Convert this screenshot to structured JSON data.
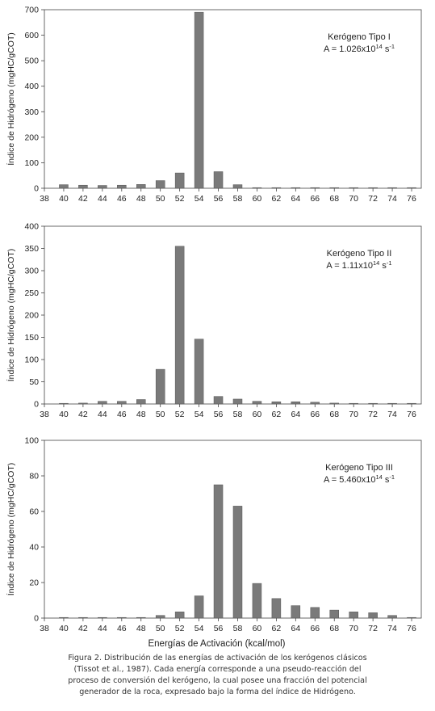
{
  "chart_data": [
    {
      "type": "bar",
      "title": "",
      "ylabel": "Índice de Hidrógeno (mgHC/gCOT)",
      "xlabel": "",
      "ylim": [
        0,
        700
      ],
      "yticks": [
        0,
        100,
        200,
        300,
        400,
        500,
        600,
        700
      ],
      "xlim": [
        38,
        77
      ],
      "xticks": [
        38,
        40,
        42,
        44,
        46,
        48,
        50,
        52,
        54,
        56,
        58,
        60,
        62,
        64,
        66,
        68,
        70,
        72,
        74,
        76
      ],
      "annotation": {
        "label": "Kerógeno Tipo I",
        "a_prefix": "A = 1.026x10",
        "a_exp": "14",
        "a_unit": " s",
        "a_unit_exp": "-1"
      },
      "series": [
        {
          "x": [
            40,
            42,
            44,
            46,
            48,
            50,
            52,
            54,
            56,
            58,
            60,
            62,
            64,
            66,
            68,
            70,
            72,
            74,
            76
          ],
          "values": [
            14,
            12,
            11,
            12,
            15,
            30,
            60,
            690,
            65,
            14,
            2,
            2,
            1,
            1,
            1,
            1,
            1,
            1,
            1
          ]
        }
      ]
    },
    {
      "type": "bar",
      "title": "",
      "ylabel": "Índice de Hidrógeno (mgHC/gCOT)",
      "xlabel": "",
      "ylim": [
        0,
        400
      ],
      "yticks": [
        0,
        50,
        100,
        150,
        200,
        250,
        300,
        350,
        400
      ],
      "xlim": [
        38,
        77
      ],
      "xticks": [
        38,
        40,
        42,
        44,
        46,
        48,
        50,
        52,
        54,
        56,
        58,
        60,
        62,
        64,
        66,
        68,
        70,
        72,
        74,
        76
      ],
      "annotation": {
        "label": "Kerógeno Tipo II",
        "a_prefix": "A = 1.11x10",
        "a_exp": "14",
        "a_unit": " s",
        "a_unit_exp": "-1"
      },
      "series": [
        {
          "x": [
            40,
            42,
            44,
            46,
            48,
            50,
            52,
            54,
            56,
            58,
            60,
            62,
            64,
            66,
            68,
            70,
            72,
            74,
            76
          ],
          "values": [
            1,
            2,
            6,
            6,
            10,
            78,
            355,
            146,
            17,
            11,
            6,
            5,
            5,
            4,
            2,
            1,
            1,
            1,
            1
          ]
        }
      ]
    },
    {
      "type": "bar",
      "title": "",
      "ylabel": "Índice de Hidrógeno (mgHC/gCOT)",
      "xlabel": "Energías de Activación (kcal/mol)",
      "ylim": [
        0,
        100
      ],
      "yticks": [
        0,
        20,
        40,
        60,
        80,
        100
      ],
      "xlim": [
        38,
        77
      ],
      "xticks": [
        38,
        40,
        42,
        44,
        46,
        48,
        50,
        52,
        54,
        56,
        58,
        60,
        62,
        64,
        66,
        68,
        70,
        72,
        74,
        76
      ],
      "annotation": {
        "label": "Kerógeno Tipo III",
        "a_prefix": "A = 5.460x10",
        "a_exp": "14",
        "a_unit": " s",
        "a_unit_exp": "-1"
      },
      "series": [
        {
          "x": [
            40,
            42,
            44,
            46,
            48,
            50,
            52,
            54,
            56,
            58,
            60,
            62,
            64,
            66,
            68,
            70,
            72,
            74,
            76
          ],
          "values": [
            0.2,
            0.2,
            0.2,
            0.2,
            0.3,
            1.5,
            3.5,
            12.5,
            75,
            63,
            19.5,
            11,
            7,
            6,
            4.5,
            3.5,
            3,
            1.5,
            0.3
          ]
        }
      ]
    }
  ],
  "caption": [
    "Figura 2.  Distribución de las energías de activación de los kerógenos clásicos",
    "(Tissot et al., 1987). Cada energía corresponde a una pseudo-reacción del",
    "proceso de conversión del kerógeno, la cual posee una fracción del potencial",
    "generador de la roca, expresado bajo la forma del índice de Hidrógeno."
  ],
  "colors": {
    "bar": "#7a7a7a",
    "bar_edge": "#555555",
    "axis": "#444444",
    "text": "#222222"
  }
}
